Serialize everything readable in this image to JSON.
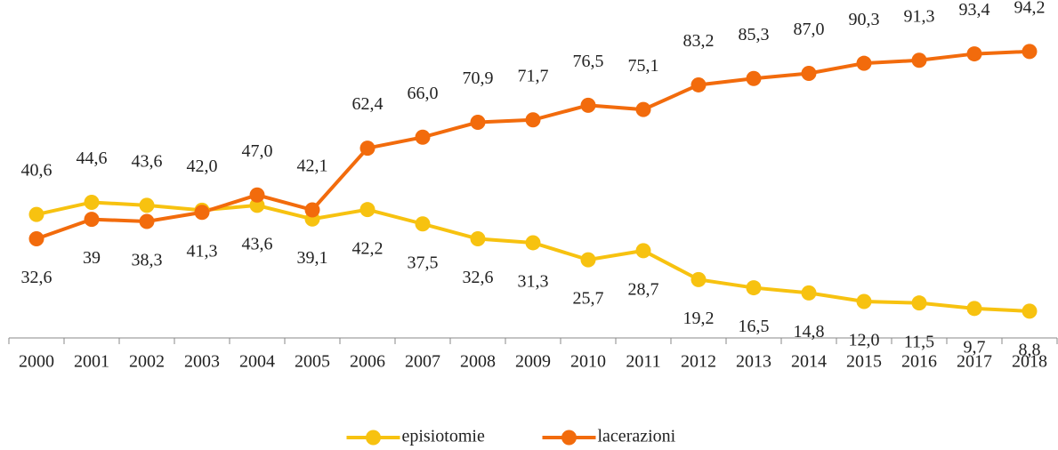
{
  "chart_data": {
    "type": "line",
    "categories": [
      "2000",
      "2001",
      "2002",
      "2003",
      "2004",
      "2005",
      "2006",
      "2007",
      "2008",
      "2009",
      "2010",
      "2011",
      "2012",
      "2013",
      "2014",
      "2015",
      "2016",
      "2017",
      "2018"
    ],
    "series": [
      {
        "name": "episiotomie",
        "color": "#f7c210",
        "values": [
          40.6,
          44.6,
          43.6,
          42.0,
          43.6,
          39.1,
          42.2,
          37.5,
          32.6,
          31.3,
          25.7,
          28.7,
          19.2,
          16.5,
          14.8,
          12.0,
          11.5,
          9.7,
          8.8
        ],
        "value_labels": [
          "40,6",
          "44,6",
          "43,6",
          "42,0",
          "43,6",
          "39,1",
          "42,2",
          "37,5",
          "32,6",
          "31,3",
          "25,7",
          "28,7",
          "19,2",
          "16,5",
          "14,8",
          "12,0",
          "11,5",
          "9,7",
          "8,8"
        ]
      },
      {
        "name": "lacerazioni",
        "color": "#f26b0c",
        "values": [
          32.6,
          39,
          38.3,
          41.3,
          47.0,
          42.1,
          62.4,
          66.0,
          70.9,
          71.7,
          76.5,
          75.1,
          83.2,
          85.3,
          87.0,
          90.3,
          91.3,
          93.4,
          94.2
        ],
        "value_labels": [
          "32,6",
          "39",
          "38,3",
          "41,3",
          "47,0",
          "42,1",
          "62,4",
          "66,0",
          "70,9",
          "71,7",
          "76,5",
          "75,1",
          "83,2",
          "85,3",
          "87,0",
          "90,3",
          "91,3",
          "93,4",
          "94,2"
        ]
      }
    ],
    "ylim": [
      0,
      100
    ],
    "legend": "bottom"
  }
}
